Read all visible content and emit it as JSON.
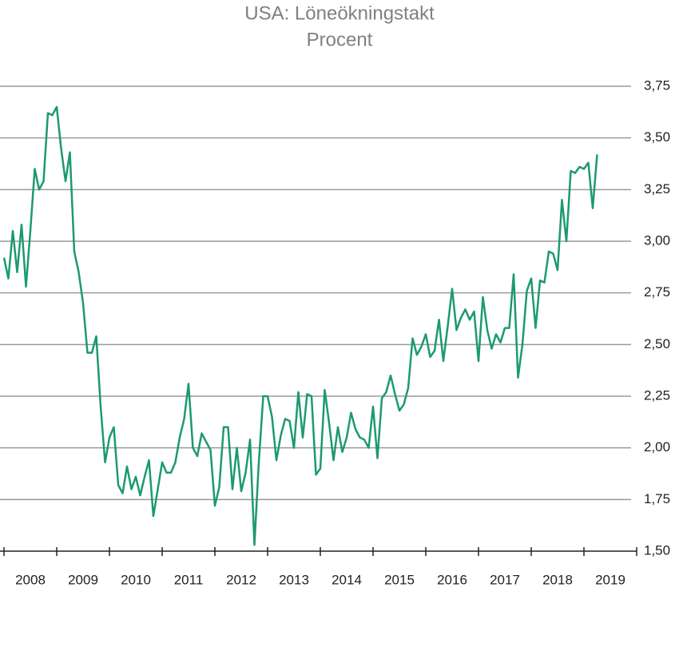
{
  "chart_data": {
    "type": "line",
    "title": "USA: Löneökningstakt",
    "subtitle": "Procent",
    "x": [
      2008,
      2008.083,
      2008.167,
      2008.25,
      2008.333,
      2008.417,
      2008.5,
      2008.583,
      2008.667,
      2008.75,
      2008.833,
      2008.917,
      2009,
      2009.083,
      2009.167,
      2009.25,
      2009.333,
      2009.417,
      2009.5,
      2009.583,
      2009.667,
      2009.75,
      2009.833,
      2009.917,
      2010,
      2010.083,
      2010.167,
      2010.25,
      2010.333,
      2010.417,
      2010.5,
      2010.583,
      2010.667,
      2010.75,
      2010.833,
      2010.917,
      2011,
      2011.083,
      2011.167,
      2011.25,
      2011.333,
      2011.417,
      2011.5,
      2011.583,
      2011.667,
      2011.75,
      2011.833,
      2011.917,
      2012,
      2012.083,
      2012.167,
      2012.25,
      2012.333,
      2012.417,
      2012.5,
      2012.583,
      2012.667,
      2012.75,
      2012.833,
      2012.917,
      2013,
      2013.083,
      2013.167,
      2013.25,
      2013.333,
      2013.417,
      2013.5,
      2013.583,
      2013.667,
      2013.75,
      2013.833,
      2013.917,
      2014,
      2014.083,
      2014.167,
      2014.25,
      2014.333,
      2014.417,
      2014.5,
      2014.583,
      2014.667,
      2014.75,
      2014.833,
      2014.917,
      2015,
      2015.083,
      2015.167,
      2015.25,
      2015.333,
      2015.417,
      2015.5,
      2015.583,
      2015.667,
      2015.75,
      2015.833,
      2015.917,
      2016,
      2016.083,
      2016.167,
      2016.25,
      2016.333,
      2016.417,
      2016.5,
      2016.583,
      2016.667,
      2016.75,
      2016.833,
      2016.917,
      2017,
      2017.083,
      2017.167,
      2017.25,
      2017.333,
      2017.417,
      2017.5,
      2017.583,
      2017.667,
      2017.75,
      2017.833,
      2017.917,
      2018,
      2018.083,
      2018.167,
      2018.25,
      2018.333,
      2018.417,
      2018.5,
      2018.583,
      2018.667,
      2018.75,
      2018.833,
      2018.917,
      2019,
      2019.083,
      2019.167,
      2019.25
    ],
    "series": [
      {
        "name": "Löneökningstakt",
        "color": "#1c9a6f",
        "values": [
          2.92,
          2.82,
          3.05,
          2.85,
          3.08,
          2.78,
          3.05,
          3.35,
          3.25,
          3.29,
          3.62,
          3.61,
          3.65,
          3.45,
          3.29,
          3.43,
          2.95,
          2.85,
          2.7,
          2.46,
          2.46,
          2.54,
          2.2,
          1.93,
          2.05,
          2.1,
          1.82,
          1.78,
          1.91,
          1.8,
          1.86,
          1.77,
          1.86,
          1.94,
          1.67,
          1.8,
          1.93,
          1.88,
          1.88,
          1.93,
          2.05,
          2.14,
          2.31,
          2.0,
          1.96,
          2.07,
          2.03,
          1.99,
          1.72,
          1.81,
          2.1,
          2.1,
          1.8,
          2.0,
          1.79,
          1.88,
          2.04,
          1.53,
          1.93,
          2.25,
          2.25,
          2.15,
          1.94,
          2.06,
          2.14,
          2.13,
          2.0,
          2.27,
          2.05,
          2.26,
          2.25,
          1.87,
          1.9,
          2.28,
          2.12,
          1.94,
          2.1,
          1.98,
          2.05,
          2.17,
          2.09,
          2.05,
          2.04,
          2.0,
          2.2,
          1.95,
          2.24,
          2.27,
          2.35,
          2.26,
          2.18,
          2.21,
          2.29,
          2.53,
          2.45,
          2.49,
          2.55,
          2.44,
          2.47,
          2.62,
          2.42,
          2.59,
          2.77,
          2.57,
          2.63,
          2.67,
          2.62,
          2.66,
          2.42,
          2.73,
          2.57,
          2.48,
          2.55,
          2.51,
          2.58,
          2.58,
          2.84,
          2.34,
          2.5,
          2.76,
          2.82,
          2.58,
          2.81,
          2.8,
          2.95,
          2.94,
          2.86,
          3.2,
          3.0,
          3.34,
          3.33,
          3.36,
          3.35,
          3.38,
          3.16,
          3.42
        ]
      }
    ],
    "xlim": [
      2008,
      2020
    ],
    "xticks": [
      2008,
      2009,
      2010,
      2011,
      2012,
      2013,
      2014,
      2015,
      2016,
      2017,
      2018,
      2019
    ],
    "ylim": [
      1.5,
      3.75
    ],
    "yticks": [
      {
        "value": 1.5,
        "label": "1,50"
      },
      {
        "value": 1.75,
        "label": "1,75"
      },
      {
        "value": 2,
        "label": "2,00"
      },
      {
        "value": 2.25,
        "label": "2,25"
      },
      {
        "value": 2.5,
        "label": "2,50"
      },
      {
        "value": 2.75,
        "label": "2,75"
      },
      {
        "value": 3,
        "label": "3,00"
      },
      {
        "value": 3.25,
        "label": "3,25"
      },
      {
        "value": 3.5,
        "label": "3,50"
      },
      {
        "value": 3.75,
        "label": "3,75"
      }
    ],
    "grid": true
  }
}
